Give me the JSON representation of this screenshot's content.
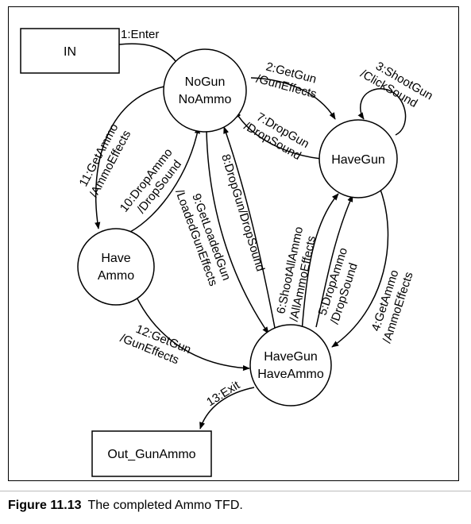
{
  "figure": {
    "caption_label": "Figure 11.13",
    "caption_text": "The completed Ammo TFD."
  },
  "nodes": [
    {
      "id": "in",
      "lines": [
        "IN"
      ]
    },
    {
      "id": "nogun",
      "lines": [
        "NoGun",
        "NoAmmo"
      ]
    },
    {
      "id": "havegun",
      "lines": [
        "HaveGun"
      ]
    },
    {
      "id": "haveammo",
      "lines": [
        "Have",
        "Ammo"
      ]
    },
    {
      "id": "havegunammo",
      "lines": [
        "HaveGun",
        "HaveAmmo"
      ]
    },
    {
      "id": "out",
      "lines": [
        "Out_GunAmmo"
      ]
    }
  ],
  "edges": [
    {
      "id": "e1",
      "lines": [
        "1:Enter"
      ]
    },
    {
      "id": "e2",
      "lines": [
        "2:GetGun",
        "/GunEffects"
      ]
    },
    {
      "id": "e3",
      "lines": [
        "3:ShootGun",
        "/ClickSound"
      ]
    },
    {
      "id": "e4",
      "lines": [
        "4:GetAmmo",
        "/AmmoEffects"
      ]
    },
    {
      "id": "e5",
      "lines": [
        "5:DropAmmo",
        "/DropSound"
      ]
    },
    {
      "id": "e6",
      "lines": [
        "6:ShootAllAmmo",
        "/AllAmmoEffects"
      ]
    },
    {
      "id": "e7",
      "lines": [
        "7:DropGun",
        "/DropSound"
      ]
    },
    {
      "id": "e8",
      "lines": [
        "8:DropGun/DropSound"
      ]
    },
    {
      "id": "e9",
      "lines": [
        "9:GetLoadedGun",
        "/LoadedGunEffects"
      ]
    },
    {
      "id": "e10",
      "lines": [
        "10:DropAmmo",
        "/DropSound"
      ]
    },
    {
      "id": "e11",
      "lines": [
        "11:GetAmmo",
        "/AmmoEffects"
      ]
    },
    {
      "id": "e12",
      "lines": [
        "12:GetGun",
        "/GunEffects"
      ]
    },
    {
      "id": "e13",
      "lines": [
        "13:Exit"
      ]
    }
  ]
}
